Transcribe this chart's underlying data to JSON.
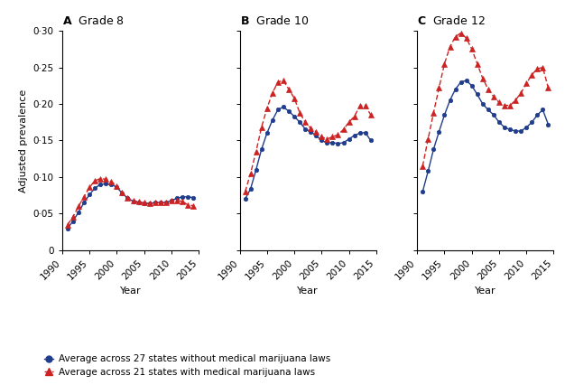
{
  "grade8": {
    "years": [
      1991,
      1992,
      1993,
      1994,
      1995,
      1996,
      1997,
      1998,
      1999,
      2000,
      2001,
      2002,
      2003,
      2004,
      2005,
      2006,
      2007,
      2008,
      2009,
      2010,
      2011,
      2012,
      2013,
      2014
    ],
    "no_mml": [
      0.03,
      0.04,
      0.052,
      0.065,
      0.076,
      0.085,
      0.09,
      0.091,
      0.09,
      0.086,
      0.078,
      0.071,
      0.067,
      0.065,
      0.064,
      0.064,
      0.065,
      0.065,
      0.065,
      0.068,
      0.071,
      0.073,
      0.073,
      0.072
    ],
    "with_mml": [
      0.035,
      0.046,
      0.06,
      0.073,
      0.086,
      0.095,
      0.098,
      0.097,
      0.094,
      0.088,
      0.079,
      0.072,
      0.068,
      0.066,
      0.065,
      0.064,
      0.065,
      0.065,
      0.065,
      0.068,
      0.068,
      0.067,
      0.062,
      0.061
    ]
  },
  "grade10": {
    "years": [
      1991,
      1992,
      1993,
      1994,
      1995,
      1996,
      1997,
      1998,
      1999,
      2000,
      2001,
      2002,
      2003,
      2004,
      2005,
      2006,
      2007,
      2008,
      2009,
      2010,
      2011,
      2012,
      2013,
      2014
    ],
    "no_mml": [
      0.07,
      0.084,
      0.11,
      0.138,
      0.16,
      0.178,
      0.192,
      0.196,
      0.19,
      0.183,
      0.175,
      0.166,
      0.162,
      0.157,
      0.15,
      0.147,
      0.147,
      0.146,
      0.147,
      0.152,
      0.157,
      0.16,
      0.161,
      0.15
    ],
    "with_mml": [
      0.08,
      0.105,
      0.135,
      0.168,
      0.194,
      0.215,
      0.23,
      0.232,
      0.22,
      0.208,
      0.188,
      0.175,
      0.167,
      0.162,
      0.155,
      0.152,
      0.155,
      0.158,
      0.165,
      0.175,
      0.183,
      0.197,
      0.198,
      0.185
    ]
  },
  "grade12": {
    "years": [
      1991,
      1992,
      1993,
      1994,
      1995,
      1996,
      1997,
      1998,
      1999,
      2000,
      2001,
      2002,
      2003,
      2004,
      2005,
      2006,
      2007,
      2008,
      2009,
      2010,
      2011,
      2012,
      2013,
      2014
    ],
    "no_mml": [
      0.08,
      0.108,
      0.138,
      0.162,
      0.185,
      0.205,
      0.22,
      0.23,
      0.232,
      0.225,
      0.213,
      0.2,
      0.192,
      0.185,
      0.175,
      0.168,
      0.165,
      0.163,
      0.163,
      0.168,
      0.175,
      0.185,
      0.192,
      0.172
    ],
    "with_mml": [
      0.115,
      0.152,
      0.188,
      0.222,
      0.255,
      0.278,
      0.292,
      0.297,
      0.29,
      0.275,
      0.255,
      0.235,
      0.22,
      0.21,
      0.202,
      0.198,
      0.198,
      0.205,
      0.215,
      0.228,
      0.24,
      0.248,
      0.25,
      0.222
    ]
  },
  "blue_color": "#1f3d8c",
  "red_color": "#cc2222",
  "ylim": [
    0,
    0.3
  ],
  "yticks": [
    0,
    0.05,
    0.1,
    0.15,
    0.2,
    0.25,
    0.3
  ],
  "ytick_labels": [
    "0",
    "0·05",
    "0·10",
    "0·15",
    "0·20",
    "0·25",
    "0·30"
  ],
  "xlim": [
    1990,
    2015
  ],
  "xticks": [
    1990,
    1995,
    2000,
    2005,
    2010,
    2015
  ],
  "panel_keys": [
    "grade8",
    "grade10",
    "grade12"
  ],
  "panel_letters": [
    "A",
    "B",
    "C"
  ],
  "panel_subtitles": [
    "Grade 8",
    "Grade 10",
    "Grade 12"
  ],
  "ylabel": "Adjusted prevalence",
  "xlabel": "Year",
  "legend_no_mml": "Average across 27 states without medical marijuana laws",
  "legend_with_mml": "Average across 21 states with medical marijuana laws",
  "bg_color": "#ffffff"
}
